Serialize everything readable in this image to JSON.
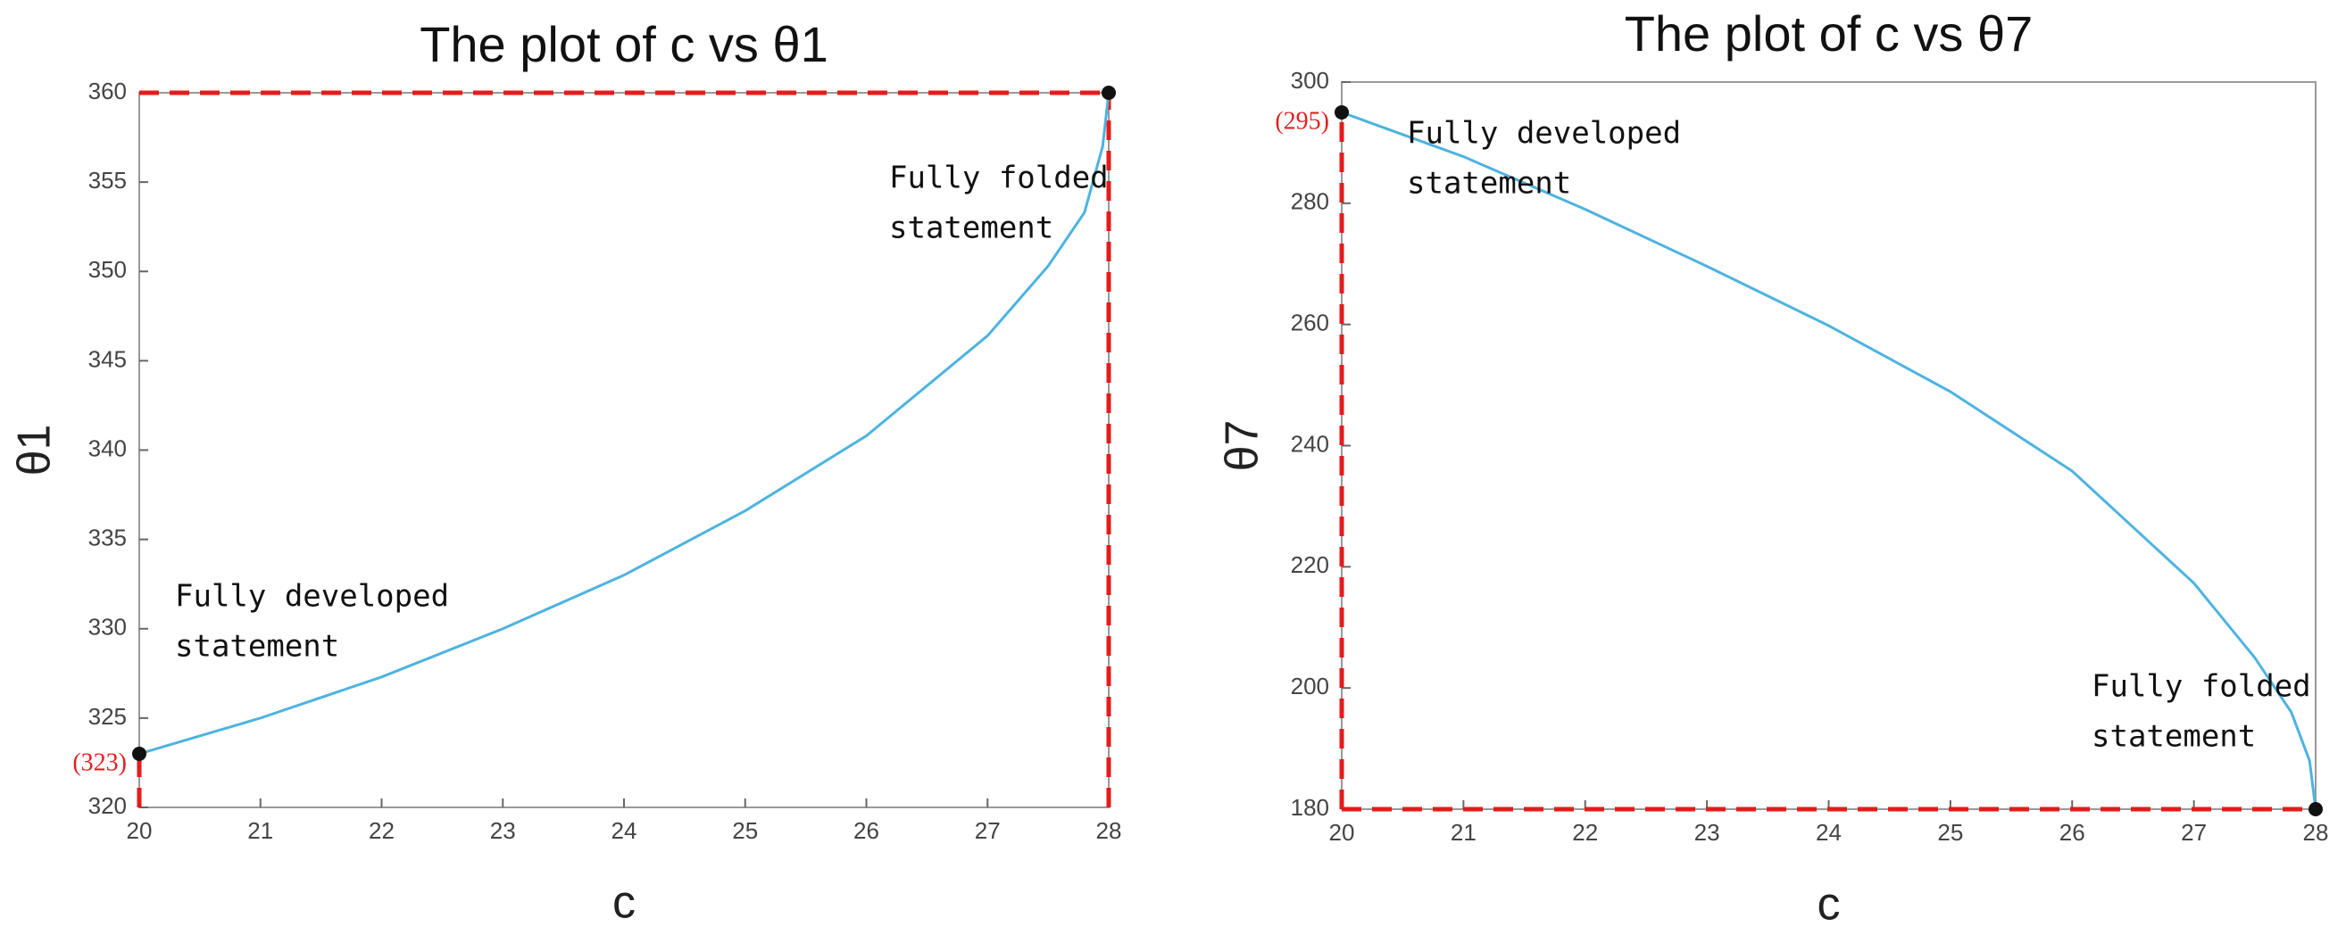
{
  "chart_data": [
    {
      "type": "line",
      "title": "The plot of c vs θ1",
      "x_label": "c",
      "y_label": "θ1",
      "x": [
        20,
        21,
        22,
        23,
        24,
        25,
        26,
        27,
        27.5,
        27.8,
        27.95,
        28
      ],
      "series": [
        {
          "name": "θ1",
          "color": "#4db3e0",
          "values": [
            323,
            325,
            327.3,
            330,
            333,
            336.6,
            340.8,
            346.4,
            350.3,
            353.3,
            357,
            360
          ],
          "value_labels": [
            "(323)",
            null,
            null,
            null,
            null,
            null,
            null,
            null,
            null,
            null,
            null,
            null
          ]
        }
      ],
      "xlim": [
        20,
        28
      ],
      "ylim": [
        320,
        360
      ],
      "xticks": [
        20,
        21,
        22,
        23,
        24,
        25,
        26,
        27,
        28
      ],
      "yticks": [
        320,
        325,
        330,
        335,
        340,
        345,
        350,
        355,
        360
      ],
      "annotations": [
        [
          "Fully developed",
          "statement"
        ],
        [
          "Fully folded",
          "statement"
        ]
      ]
    },
    {
      "type": "line",
      "title": "The plot of c vs θ7",
      "x_label": "c",
      "y_label": "θ7",
      "x": [
        20,
        21,
        22,
        23,
        24,
        25,
        26,
        27,
        27.5,
        27.8,
        27.95,
        28
      ],
      "series": [
        {
          "name": "θ7",
          "color": "#4db3e0",
          "values": [
            295,
            287.7,
            279,
            269.6,
            259.8,
            248.9,
            235.8,
            217.3,
            205,
            196,
            188,
            180
          ],
          "value_labels": [
            "(295)",
            null,
            null,
            null,
            null,
            null,
            null,
            null,
            null,
            null,
            null,
            null
          ]
        }
      ],
      "xlim": [
        20,
        28
      ],
      "ylim": [
        180,
        300
      ],
      "xticks": [
        20,
        21,
        22,
        23,
        24,
        25,
        26,
        27,
        28
      ],
      "yticks": [
        180,
        200,
        220,
        240,
        260,
        280,
        300
      ],
      "annotations": [
        [
          "Fully developed",
          "statement"
        ],
        [
          "Fully folded",
          "statement"
        ]
      ]
    }
  ]
}
